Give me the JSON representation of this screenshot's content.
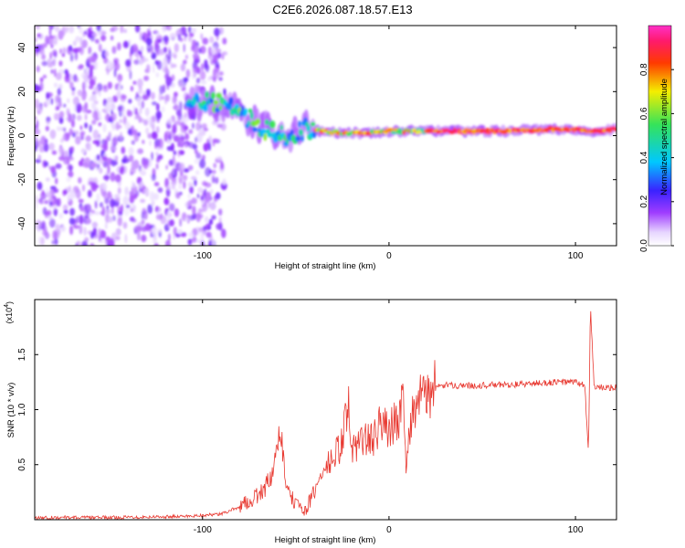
{
  "title": "C2E6.2026.087.18.57.E13",
  "chart_data": [
    {
      "type": "heatmap",
      "xlabel": "Height of straight line (km)",
      "ylabel": "Frequency (Hz)",
      "xlim": [
        -190,
        122
      ],
      "ylim": [
        -50,
        50
      ],
      "x_ticks": [
        "-100",
        "0",
        "100"
      ],
      "y_ticks": [
        "-40",
        "-20",
        "0",
        "20",
        "40"
      ],
      "colorbar": {
        "label": "Normalized spectral amplitude",
        "range": [
          0,
          1
        ],
        "ticks": [
          "0.0",
          "0.2",
          "0.4",
          "0.6",
          "0.8"
        ],
        "colormap": "rainbow (white-violet-blue-cyan-green-yellow-red-magenta)"
      },
      "ridge": [
        {
          "x": -108,
          "y": 16
        },
        {
          "x": -95,
          "y": 16
        },
        {
          "x": -85,
          "y": 12
        },
        {
          "x": -75,
          "y": 8
        },
        {
          "x": -65,
          "y": 2
        },
        {
          "x": -55,
          "y": 0
        },
        {
          "x": -45,
          "y": 3
        },
        {
          "x": -35,
          "y": 2
        },
        {
          "x": -20,
          "y": 1
        },
        {
          "x": 0,
          "y": 2
        },
        {
          "x": 30,
          "y": 2
        },
        {
          "x": 60,
          "y": 2
        },
        {
          "x": 90,
          "y": 3
        },
        {
          "x": 110,
          "y": 2
        },
        {
          "x": 122,
          "y": 3
        }
      ],
      "noise_region_x": [
        -190,
        -88
      ]
    },
    {
      "type": "line",
      "xlabel": "Height of straight line (km)",
      "ylabel": "SNR (10 * v/v)",
      "multiplier_label": "(x10",
      "multiplier_exp": "4",
      "multiplier_close": ")",
      "xlim": [
        -190,
        122
      ],
      "ylim": [
        0,
        2.0
      ],
      "x_ticks": [
        "-100",
        "0",
        "100"
      ],
      "y_ticks": [
        "0.5",
        "1.0",
        "1.5"
      ],
      "color": "#e83a32",
      "points": [
        {
          "x": -190,
          "y": 0.02
        },
        {
          "x": -150,
          "y": 0.02
        },
        {
          "x": -110,
          "y": 0.03
        },
        {
          "x": -90,
          "y": 0.05
        },
        {
          "x": -80,
          "y": 0.12
        },
        {
          "x": -70,
          "y": 0.22
        },
        {
          "x": -62,
          "y": 0.4
        },
        {
          "x": -58,
          "y": 0.85
        },
        {
          "x": -55,
          "y": 0.25
        },
        {
          "x": -50,
          "y": 0.15
        },
        {
          "x": -45,
          "y": 0.08
        },
        {
          "x": -40,
          "y": 0.25
        },
        {
          "x": -35,
          "y": 0.45
        },
        {
          "x": -30,
          "y": 0.55
        },
        {
          "x": -25,
          "y": 0.7
        },
        {
          "x": -22,
          "y": 1.1
        },
        {
          "x": -20,
          "y": 0.6
        },
        {
          "x": -15,
          "y": 0.75
        },
        {
          "x": -10,
          "y": 0.7
        },
        {
          "x": -5,
          "y": 0.85
        },
        {
          "x": 0,
          "y": 0.85
        },
        {
          "x": 5,
          "y": 0.9
        },
        {
          "x": 8,
          "y": 1.15
        },
        {
          "x": 9,
          "y": 0.5
        },
        {
          "x": 12,
          "y": 0.95
        },
        {
          "x": 15,
          "y": 1.05
        },
        {
          "x": 20,
          "y": 1.15
        },
        {
          "x": 25,
          "y": 1.2
        },
        {
          "x": 30,
          "y": 1.22
        },
        {
          "x": 50,
          "y": 1.22
        },
        {
          "x": 70,
          "y": 1.23
        },
        {
          "x": 90,
          "y": 1.25
        },
        {
          "x": 100,
          "y": 1.25
        },
        {
          "x": 105,
          "y": 1.22
        },
        {
          "x": 107,
          "y": 0.6
        },
        {
          "x": 108,
          "y": 1.95
        },
        {
          "x": 110,
          "y": 1.2
        },
        {
          "x": 122,
          "y": 1.2
        }
      ]
    }
  ]
}
